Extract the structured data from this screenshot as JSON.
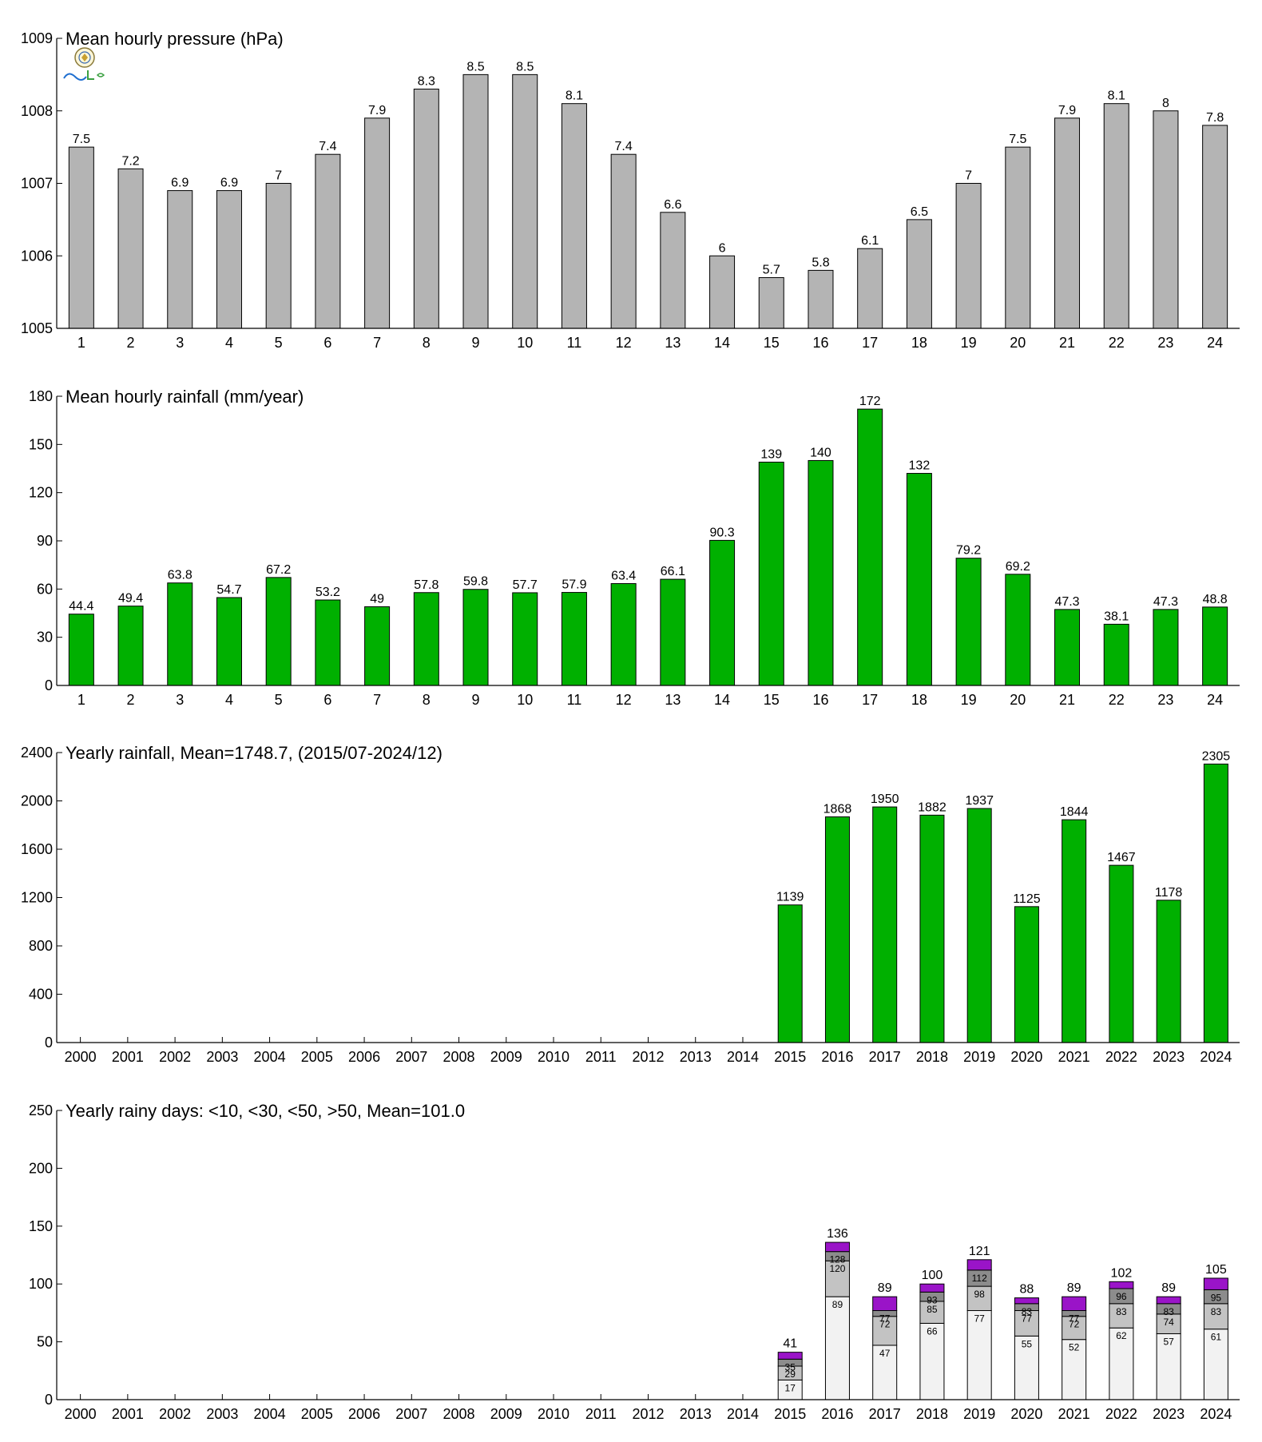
{
  "chart_data": [
    {
      "type": "bar",
      "title": "Mean hourly pressure (hPa)",
      "categories": [
        "1",
        "2",
        "3",
        "4",
        "5",
        "6",
        "7",
        "8",
        "9",
        "10",
        "11",
        "12",
        "13",
        "14",
        "15",
        "16",
        "17",
        "18",
        "19",
        "20",
        "21",
        "22",
        "23",
        "24"
      ],
      "values": [
        1007.5,
        1007.2,
        1006.9,
        1006.9,
        1007.0,
        1007.4,
        1007.9,
        1008.3,
        1008.5,
        1008.5,
        1008.1,
        1007.4,
        1006.6,
        1006.0,
        1005.7,
        1005.8,
        1006.1,
        1006.5,
        1007.0,
        1007.5,
        1007.9,
        1008.1,
        1008.0,
        1007.8
      ],
      "labels": [
        "7.5",
        "7.2",
        "6.9",
        "6.9",
        "7",
        "7.4",
        "7.9",
        "8.3",
        "8.5",
        "8.5",
        "8.1",
        "7.4",
        "6.6",
        "6",
        "5.7",
        "5.8",
        "6.1",
        "6.5",
        "7",
        "7.5",
        "7.9",
        "8.1",
        "8",
        "7.8"
      ],
      "ylim": [
        1005,
        1009
      ],
      "yticks": [
        "1005",
        "1006",
        "1007",
        "1008",
        "1009"
      ],
      "color": "#b4b4b4"
    },
    {
      "type": "bar",
      "title": "Mean hourly rainfall (mm/year)",
      "categories": [
        "1",
        "2",
        "3",
        "4",
        "5",
        "6",
        "7",
        "8",
        "9",
        "10",
        "11",
        "12",
        "13",
        "14",
        "15",
        "16",
        "17",
        "18",
        "19",
        "20",
        "21",
        "22",
        "23",
        "24"
      ],
      "values": [
        44.4,
        49.4,
        63.8,
        54.7,
        67.2,
        53.2,
        49,
        57.8,
        59.8,
        57.7,
        57.9,
        63.4,
        66.1,
        90.3,
        139,
        140,
        172,
        132,
        79.2,
        69.2,
        47.3,
        38.1,
        47.3,
        48.8
      ],
      "labels": [
        "44.4",
        "49.4",
        "63.8",
        "54.7",
        "67.2",
        "53.2",
        "49",
        "57.8",
        "59.8",
        "57.7",
        "57.9",
        "63.4",
        "66.1",
        "90.3",
        "139",
        "140",
        "172",
        "132",
        "79.2",
        "69.2",
        "47.3",
        "38.1",
        "47.3",
        "48.8"
      ],
      "ylim": [
        0,
        180
      ],
      "yticks": [
        "0",
        "30",
        "60",
        "90",
        "120",
        "150",
        "180"
      ],
      "color": "#00b000"
    },
    {
      "type": "bar",
      "title": "Yearly rainfall, Mean=1748.7, (2015/07-2024/12)",
      "categories": [
        "2000",
        "2001",
        "2002",
        "2003",
        "2004",
        "2005",
        "2006",
        "2007",
        "2008",
        "2009",
        "2010",
        "2011",
        "2012",
        "2013",
        "2014",
        "2015",
        "2016",
        "2017",
        "2018",
        "2019",
        "2020",
        "2021",
        "2022",
        "2023",
        "2024"
      ],
      "values": [
        null,
        null,
        null,
        null,
        null,
        null,
        null,
        null,
        null,
        null,
        null,
        null,
        null,
        null,
        null,
        1139,
        1868,
        1950,
        1882,
        1937,
        1125,
        1844,
        1467,
        1178,
        2305
      ],
      "labels": [
        "",
        "",
        "",
        "",
        "",
        "",
        "",
        "",
        "",
        "",
        "",
        "",
        "",
        "",
        "",
        "1139",
        "1868",
        "1950",
        "1882",
        "1937",
        "1125",
        "1844",
        "1467",
        "1178",
        "2305"
      ],
      "ylim": [
        0,
        2400
      ],
      "yticks": [
        "0",
        "400",
        "800",
        "1200",
        "1600",
        "2000",
        "2400"
      ],
      "color": "#00b000"
    },
    {
      "type": "bar",
      "title": "Yearly rainy days: <10, <30, <50, >50, Mean=101.0",
      "categories": [
        "2000",
        "2001",
        "2002",
        "2003",
        "2004",
        "2005",
        "2006",
        "2007",
        "2008",
        "2009",
        "2010",
        "2011",
        "2012",
        "2013",
        "2014",
        "2015",
        "2016",
        "2017",
        "2018",
        "2019",
        "2020",
        "2021",
        "2022",
        "2023",
        "2024"
      ],
      "stacks": [
        null,
        null,
        null,
        null,
        null,
        null,
        null,
        null,
        null,
        null,
        null,
        null,
        null,
        null,
        null,
        {
          "cum": [
            17,
            29,
            35,
            41
          ],
          "labels": [
            "17",
            "29",
            "35",
            "41"
          ]
        },
        {
          "cum": [
            89,
            120,
            128,
            136
          ],
          "labels": [
            "89",
            "120",
            "128",
            "136"
          ]
        },
        {
          "cum": [
            47,
            72,
            77,
            89
          ],
          "labels": [
            "47",
            "72",
            "77",
            "89"
          ]
        },
        {
          "cum": [
            66,
            85,
            93,
            100
          ],
          "labels": [
            "66",
            "85",
            "93",
            "100"
          ]
        },
        {
          "cum": [
            77,
            98,
            112,
            121
          ],
          "labels": [
            "77",
            "98",
            "112",
            "121"
          ]
        },
        {
          "cum": [
            55,
            77,
            83,
            88
          ],
          "labels": [
            "55",
            "77",
            "83",
            "88"
          ]
        },
        {
          "cum": [
            52,
            72,
            77,
            89
          ],
          "labels": [
            "52",
            "72",
            "77",
            "89"
          ]
        },
        {
          "cum": [
            62,
            83,
            96,
            102
          ],
          "labels": [
            "62",
            "83",
            "96",
            "102"
          ]
        },
        {
          "cum": [
            57,
            74,
            83,
            89
          ],
          "labels": [
            "57",
            "74",
            "83",
            "89"
          ]
        },
        {
          "cum": [
            61,
            83,
            95,
            105
          ],
          "labels": [
            "61",
            "83",
            "95",
            "105"
          ]
        }
      ],
      "segment_colors": [
        "#f2f2f2",
        "#c3c3c3",
        "#8c8c8c",
        "#9a14c8"
      ],
      "ylim": [
        0,
        250
      ],
      "yticks": [
        "0",
        "50",
        "100",
        "150",
        "200",
        "250"
      ]
    }
  ]
}
